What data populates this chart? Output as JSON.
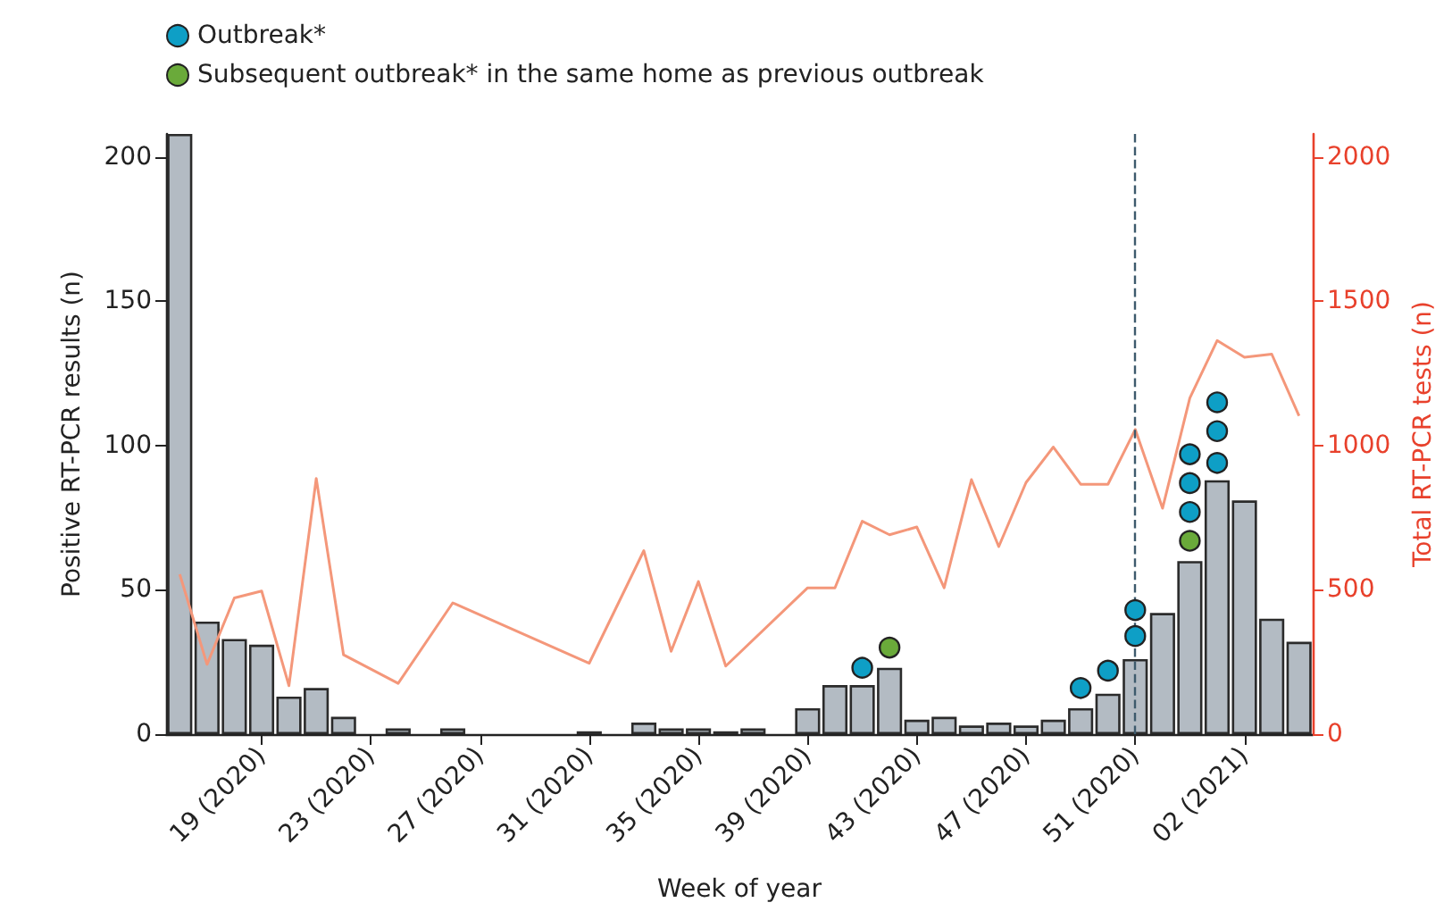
{
  "chart_data": {
    "type": "bar",
    "xlabel": "Week of year",
    "ylabel": "Positive RT-PCR results (n)",
    "y2label": "Total RT-PCR tests (n)",
    "categories": [
      null,
      null,
      null,
      "19 (2020)",
      null,
      null,
      null,
      "23 (2020)",
      null,
      null,
      null,
      "27 (2020)",
      null,
      null,
      null,
      "31 (2020)",
      null,
      null,
      null,
      "35 (2020)",
      null,
      null,
      null,
      "39 (2020)",
      null,
      null,
      null,
      "43 (2020)",
      null,
      null,
      null,
      "47 (2020)",
      null,
      null,
      null,
      "51 (2020)",
      null,
      null,
      null,
      "02 (2021)",
      null,
      null
    ],
    "series": [
      {
        "color": "#b3bbc3",
        "values": [
          208,
          39,
          33,
          31,
          13,
          16,
          6,
          null,
          2,
          null,
          2,
          null,
          null,
          null,
          null,
          1,
          null,
          4,
          2,
          2,
          1,
          2,
          null,
          9,
          17,
          17,
          23,
          5,
          6,
          3,
          4,
          3,
          5,
          9,
          14,
          26,
          42,
          60,
          88,
          81,
          40,
          32
        ]
      },
      {
        "type": "line",
        "axis": "y2",
        "color": "#f4977a",
        "values": [
          554,
          242,
          472,
          496,
          168,
          886,
          275,
          null,
          176,
          null,
          455,
          null,
          null,
          null,
          null,
          246,
          null,
          636,
          287,
          529,
          236,
          null,
          null,
          507,
          507,
          738,
          691,
          718,
          507,
          882,
          650,
          872,
          995,
          866,
          866,
          1056,
          783,
          1165,
          1364,
          1306,
          1317,
          1103
        ]
      },
      {
        "type": "scatter",
        "marker": "circle",
        "name": "Outbreak*",
        "color": "#0e9fc6",
        "values": [
          null,
          null,
          null,
          null,
          null,
          null,
          null,
          null,
          null,
          null,
          null,
          null,
          null,
          null,
          null,
          null,
          null,
          null,
          null,
          null,
          null,
          null,
          null,
          null,
          null,
          23,
          null,
          null,
          null,
          null,
          null,
          null,
          null,
          16,
          22,
          34,
          null,
          77,
          94,
          null,
          null,
          null
        ]
      },
      {
        "type": "scatter",
        "marker": "circle",
        "color": "#0e9fc6",
        "values": [
          null,
          null,
          null,
          null,
          null,
          null,
          null,
          null,
          null,
          null,
          null,
          null,
          null,
          null,
          null,
          null,
          null,
          null,
          null,
          null,
          null,
          null,
          null,
          null,
          null,
          null,
          null,
          null,
          null,
          null,
          null,
          null,
          null,
          null,
          null,
          43,
          null,
          87,
          105,
          null,
          null,
          null
        ]
      },
      {
        "type": "scatter",
        "marker": "circle",
        "color": "#0e9fc6",
        "values": [
          null,
          null,
          null,
          null,
          null,
          null,
          null,
          null,
          null,
          null,
          null,
          null,
          null,
          null,
          null,
          null,
          null,
          null,
          null,
          null,
          null,
          null,
          null,
          null,
          null,
          null,
          null,
          null,
          null,
          null,
          null,
          null,
          null,
          null,
          null,
          null,
          null,
          97,
          115,
          null,
          null,
          null
        ]
      },
      {
        "type": "scatter",
        "marker": "circle",
        "name": "Subsequent outbreak* in the same home as previous outbreak",
        "color": "#6aaa3a",
        "values": [
          null,
          null,
          null,
          null,
          null,
          null,
          null,
          null,
          null,
          null,
          null,
          null,
          null,
          null,
          null,
          null,
          null,
          null,
          null,
          null,
          null,
          null,
          null,
          null,
          null,
          null,
          30,
          null,
          null,
          null,
          null,
          null,
          null,
          null,
          null,
          null,
          null,
          67,
          null,
          null,
          null,
          null
        ]
      }
    ],
    "ylim": [
      0,
      208
    ],
    "yticks": [
      0,
      50,
      100,
      150,
      200
    ],
    "y2lim": [
      0,
      2080
    ],
    "y2ticks": [
      0,
      500,
      1000,
      1500,
      2000
    ],
    "ref_lines": [
      {
        "axis": "x",
        "value": "51 (2020)",
        "color": "#3d5a6c",
        "line_style": "dashed"
      }
    ],
    "legend": "top left",
    "grid": false
  }
}
